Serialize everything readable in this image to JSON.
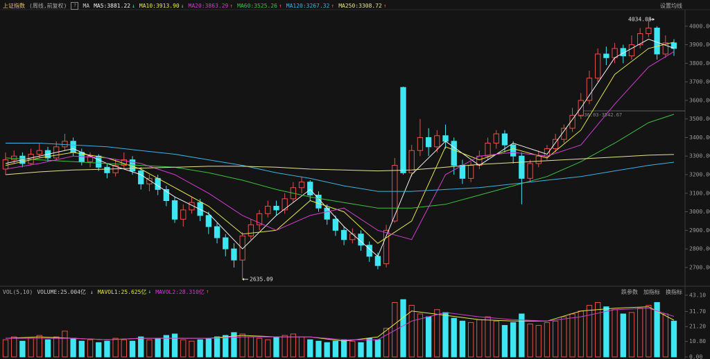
{
  "chart_data": [
    {
      "type": "candlestick",
      "title": "上证指数",
      "subtitle": "(周线,前复权)",
      "indicator": "MA",
      "settings_label": "设置均线",
      "open": [
        3230,
        3280,
        3300,
        3260,
        3310,
        3330,
        3290,
        3350,
        3380,
        3320,
        3270,
        3300,
        3240,
        3210,
        3250,
        3280,
        3220,
        3150,
        3180,
        3120,
        3060,
        2960,
        3010,
        3050,
        2980,
        2920,
        2860,
        2800,
        2740,
        2870,
        2930,
        2990,
        3030,
        3010,
        3070,
        3130,
        3160,
        3090,
        3020,
        2960,
        2900,
        2850,
        2880,
        2820,
        2760,
        2720,
        2950,
        3670,
        3210,
        3330,
        3400,
        3350,
        3410,
        3380,
        3250,
        3180,
        3250,
        3300,
        3370,
        3420,
        3360,
        3300,
        3180,
        3260,
        3300,
        3340,
        3390,
        3450,
        3520,
        3600,
        3720,
        3850,
        3830,
        3880,
        3840,
        3900,
        3960,
        3990,
        3850,
        3910
      ],
      "high": [
        3320,
        3330,
        3320,
        3340,
        3370,
        3350,
        3380,
        3420,
        3400,
        3340,
        3320,
        3310,
        3260,
        3280,
        3320,
        3300,
        3240,
        3200,
        3200,
        3140,
        3080,
        3040,
        3080,
        3070,
        3000,
        2940,
        2880,
        2830,
        2890,
        2960,
        3010,
        3060,
        3060,
        3100,
        3160,
        3190,
        3170,
        3110,
        3040,
        2980,
        2920,
        2910,
        2900,
        2840,
        2780,
        2930,
        3290,
        3674,
        3360,
        3500,
        3450,
        3440,
        3470,
        3400,
        3280,
        3270,
        3330,
        3400,
        3440,
        3440,
        3380,
        3320,
        3280,
        3330,
        3360,
        3420,
        3470,
        3560,
        3640,
        3760,
        3880,
        3890,
        3910,
        3900,
        3950,
        3990,
        4034.08,
        4000,
        3950,
        3930
      ],
      "low": [
        3200,
        3260,
        3240,
        3250,
        3290,
        3270,
        3280,
        3330,
        3300,
        3250,
        3240,
        3220,
        3180,
        3190,
        3230,
        3200,
        3120,
        3110,
        3090,
        3030,
        2940,
        2920,
        2990,
        2950,
        2880,
        2830,
        2760,
        2700,
        2635.09,
        2850,
        2900,
        2970,
        2980,
        2990,
        3050,
        3100,
        3060,
        3000,
        2930,
        2870,
        2820,
        2830,
        2790,
        2730,
        2690,
        2700,
        2940,
        3200,
        3190,
        3300,
        3300,
        3320,
        3340,
        3200,
        3150,
        3160,
        3230,
        3280,
        3340,
        3320,
        3260,
        3040,
        3160,
        3240,
        3280,
        3320,
        3370,
        3430,
        3500,
        3580,
        3700,
        3790,
        3800,
        3800,
        3820,
        3880,
        3940,
        3820,
        3830,
        3840
      ],
      "close": [
        3280,
        3300,
        3260,
        3310,
        3330,
        3290,
        3350,
        3380,
        3320,
        3270,
        3300,
        3240,
        3210,
        3250,
        3280,
        3220,
        3150,
        3180,
        3120,
        3060,
        2960,
        3010,
        3050,
        2980,
        2920,
        2860,
        2800,
        2740,
        2870,
        2930,
        2990,
        3030,
        3010,
        3070,
        3130,
        3160,
        3090,
        3020,
        2960,
        2900,
        2850,
        2880,
        2820,
        2760,
        2710,
        2900,
        3250,
        3210,
        3330,
        3400,
        3350,
        3410,
        3380,
        3250,
        3180,
        3250,
        3300,
        3370,
        3420,
        3360,
        3300,
        3180,
        3260,
        3300,
        3340,
        3390,
        3450,
        3520,
        3600,
        3720,
        3850,
        3830,
        3880,
        3840,
        3900,
        3960,
        3990,
        3850,
        3910,
        3880
      ],
      "up_color": "#e8504a",
      "down_color": "#3ee6f2",
      "series": [
        {
          "name": "MA5:3881.22",
          "trend": "↓",
          "color": "#f2f2f2",
          "x": [
            0,
            4,
            8,
            12,
            16,
            20,
            24,
            28,
            32,
            36,
            40,
            44,
            48,
            52,
            56,
            60,
            64,
            68,
            72,
            76,
            79
          ],
          "values": [
            3260,
            3300,
            3340,
            3260,
            3200,
            3080,
            2990,
            2800,
            2980,
            3120,
            2920,
            2760,
            3200,
            3380,
            3250,
            3370,
            3310,
            3560,
            3830,
            3930,
            3881.22
          ]
        },
        {
          "name": "MA10:3913.90",
          "trend": "↓",
          "color": "#e6e64c",
          "x": [
            0,
            4,
            8,
            12,
            16,
            20,
            24,
            28,
            32,
            36,
            40,
            44,
            48,
            52,
            56,
            60,
            64,
            68,
            72,
            76,
            79
          ],
          "values": [
            3250,
            3290,
            3320,
            3290,
            3230,
            3130,
            3030,
            2880,
            2900,
            3060,
            3000,
            2830,
            2950,
            3350,
            3280,
            3340,
            3290,
            3440,
            3740,
            3880,
            3913.9
          ]
        },
        {
          "name": "MA20:3863.29",
          "trend": "↑",
          "color": "#d23cd2",
          "x": [
            0,
            4,
            8,
            12,
            16,
            20,
            24,
            28,
            32,
            36,
            40,
            44,
            48,
            52,
            56,
            60,
            64,
            68,
            72,
            76,
            79
          ],
          "values": [
            3230,
            3260,
            3300,
            3290,
            3260,
            3200,
            3100,
            2980,
            2900,
            2980,
            3020,
            2900,
            2850,
            3200,
            3300,
            3320,
            3300,
            3360,
            3580,
            3780,
            3863.29
          ]
        },
        {
          "name": "MA60:3525.26",
          "trend": "↑",
          "color": "#3cc43c",
          "x": [
            0,
            4,
            8,
            12,
            16,
            20,
            24,
            28,
            32,
            36,
            40,
            44,
            48,
            52,
            56,
            60,
            64,
            68,
            72,
            76,
            79
          ],
          "values": [
            3290,
            3280,
            3270,
            3260,
            3250,
            3240,
            3210,
            3170,
            3120,
            3080,
            3050,
            3020,
            3020,
            3040,
            3090,
            3140,
            3190,
            3270,
            3370,
            3480,
            3525.26
          ]
        },
        {
          "name": "MA120:3267.32",
          "trend": "↑",
          "color": "#3cb4e6",
          "x": [
            0,
            4,
            8,
            12,
            16,
            20,
            24,
            28,
            32,
            36,
            40,
            44,
            48,
            52,
            56,
            60,
            64,
            68,
            72,
            76,
            79
          ],
          "values": [
            3370,
            3370,
            3360,
            3350,
            3330,
            3310,
            3280,
            3250,
            3210,
            3180,
            3140,
            3110,
            3110,
            3120,
            3130,
            3150,
            3170,
            3190,
            3220,
            3250,
            3267.32
          ]
        },
        {
          "name": "MA250:3308.72",
          "trend": "↑",
          "color": "#e8e490",
          "x": [
            0,
            4,
            8,
            12,
            16,
            20,
            24,
            28,
            32,
            36,
            40,
            44,
            48,
            52,
            56,
            60,
            64,
            68,
            72,
            76,
            79
          ],
          "values": [
            3200,
            3215,
            3225,
            3230,
            3235,
            3240,
            3245,
            3245,
            3240,
            3230,
            3225,
            3220,
            3225,
            3240,
            3255,
            3265,
            3275,
            3285,
            3295,
            3305,
            3308.72
          ]
        }
      ],
      "annotations": [
        "4034.08",
        "2635.09",
        "3536.03-3542.67"
      ],
      "ylim": [
        2610,
        4085
      ],
      "yticks": [
        {
          "value": 2700,
          "label": "2700.00"
        },
        {
          "value": 2800,
          "label": "2800.00"
        },
        {
          "value": 2900,
          "label": "2900.00"
        },
        {
          "value": 3000,
          "label": "3000.00"
        },
        {
          "value": 3100,
          "label": "3100.00"
        },
        {
          "value": 3200,
          "label": "3200.00"
        },
        {
          "value": 3300,
          "label": "3300.00"
        },
        {
          "value": 3400,
          "label": "3400.00"
        },
        {
          "value": 3500,
          "label": "3500.00"
        },
        {
          "value": 3600,
          "label": "3600.00"
        },
        {
          "value": 3700,
          "label": "3700.00"
        },
        {
          "value": 3800,
          "label": "3800.00"
        },
        {
          "value": 3900,
          "label": "3900.00"
        },
        {
          "value": 4000,
          "label": "4000.00"
        }
      ]
    },
    {
      "type": "bar",
      "title": "VOL(5,10)",
      "volume_label": "VOLUME:25.004亿",
      "volume_trend": "↓",
      "values": [
        12,
        14,
        11,
        13,
        15,
        12,
        14,
        18,
        13,
        11,
        12,
        10,
        11,
        13,
        12,
        11,
        14,
        12,
        13,
        15,
        16,
        12,
        11,
        12,
        13,
        14,
        15,
        17,
        16,
        14,
        13,
        12,
        14,
        15,
        16,
        14,
        12,
        11,
        10,
        11,
        12,
        11,
        10,
        13,
        12,
        20,
        38,
        40,
        36,
        30,
        28,
        33,
        31,
        27,
        25,
        24,
        26,
        28,
        25,
        22,
        24,
        30,
        23,
        22,
        24,
        25,
        28,
        30,
        32,
        36,
        38,
        35,
        33,
        30,
        31,
        34,
        36,
        38,
        30,
        25.004
      ],
      "series": [
        {
          "name": "MAVOL1:25.625亿",
          "trend": "↓",
          "color": "#e6e64c",
          "x": [
            0,
            4,
            8,
            12,
            16,
            20,
            24,
            28,
            32,
            36,
            40,
            44,
            48,
            52,
            56,
            60,
            64,
            68,
            72,
            76,
            79
          ],
          "values": [
            13,
            14,
            13,
            12,
            13,
            13,
            13,
            15,
            14,
            14,
            11,
            14,
            32,
            29,
            26,
            25,
            25,
            32,
            34,
            35,
            25.625
          ]
        },
        {
          "name": "MAVOL2:28.310亿",
          "trend": "↑",
          "color": "#d23cd2",
          "x": [
            0,
            4,
            8,
            12,
            16,
            20,
            24,
            28,
            32,
            36,
            40,
            44,
            48,
            52,
            56,
            60,
            64,
            68,
            72,
            76,
            79
          ],
          "values": [
            13,
            13,
            13,
            12,
            13,
            13,
            13,
            14,
            14,
            14,
            12,
            12,
            25,
            31,
            28,
            26,
            25,
            28,
            33,
            34,
            28.31
          ]
        }
      ],
      "buttons": [
        "跌参数",
        "加指标",
        "换指标"
      ],
      "ylim": [
        0,
        44.5
      ],
      "yticks": [
        {
          "value": 0,
          "label": "0.00"
        },
        {
          "value": 10.8,
          "label": "10.80"
        },
        {
          "value": 21.2,
          "label": "21.20"
        },
        {
          "value": 31.7,
          "label": "31.70"
        },
        {
          "value": 43.1,
          "label": "43.10"
        }
      ]
    }
  ]
}
